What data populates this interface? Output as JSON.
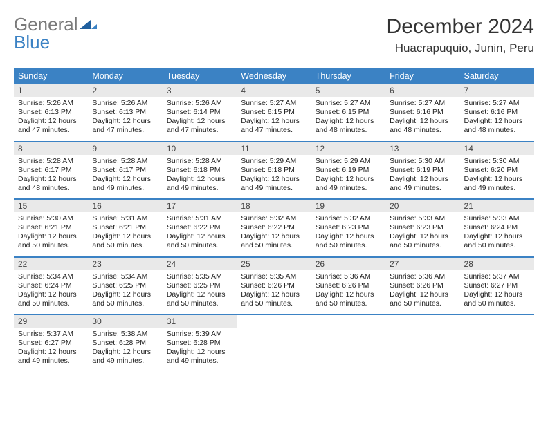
{
  "logo": {
    "word1": "General",
    "word2": "Blue",
    "color_gray": "#7a7a7a",
    "color_blue": "#3b82c4"
  },
  "title": "December 2024",
  "location": "Huacrapuquio, Junin, Peru",
  "header_bg": "#3b82c4",
  "header_fg": "#ffffff",
  "daynum_bg": "#e9e9e9",
  "rule_color": "#3b82c4",
  "weekdays": [
    "Sunday",
    "Monday",
    "Tuesday",
    "Wednesday",
    "Thursday",
    "Friday",
    "Saturday"
  ],
  "weeks": [
    [
      {
        "n": "1",
        "sr": "5:26 AM",
        "ss": "6:13 PM",
        "dl": "12 hours and 47 minutes."
      },
      {
        "n": "2",
        "sr": "5:26 AM",
        "ss": "6:13 PM",
        "dl": "12 hours and 47 minutes."
      },
      {
        "n": "3",
        "sr": "5:26 AM",
        "ss": "6:14 PM",
        "dl": "12 hours and 47 minutes."
      },
      {
        "n": "4",
        "sr": "5:27 AM",
        "ss": "6:15 PM",
        "dl": "12 hours and 47 minutes."
      },
      {
        "n": "5",
        "sr": "5:27 AM",
        "ss": "6:15 PM",
        "dl": "12 hours and 48 minutes."
      },
      {
        "n": "6",
        "sr": "5:27 AM",
        "ss": "6:16 PM",
        "dl": "12 hours and 48 minutes."
      },
      {
        "n": "7",
        "sr": "5:27 AM",
        "ss": "6:16 PM",
        "dl": "12 hours and 48 minutes."
      }
    ],
    [
      {
        "n": "8",
        "sr": "5:28 AM",
        "ss": "6:17 PM",
        "dl": "12 hours and 48 minutes."
      },
      {
        "n": "9",
        "sr": "5:28 AM",
        "ss": "6:17 PM",
        "dl": "12 hours and 49 minutes."
      },
      {
        "n": "10",
        "sr": "5:28 AM",
        "ss": "6:18 PM",
        "dl": "12 hours and 49 minutes."
      },
      {
        "n": "11",
        "sr": "5:29 AM",
        "ss": "6:18 PM",
        "dl": "12 hours and 49 minutes."
      },
      {
        "n": "12",
        "sr": "5:29 AM",
        "ss": "6:19 PM",
        "dl": "12 hours and 49 minutes."
      },
      {
        "n": "13",
        "sr": "5:30 AM",
        "ss": "6:19 PM",
        "dl": "12 hours and 49 minutes."
      },
      {
        "n": "14",
        "sr": "5:30 AM",
        "ss": "6:20 PM",
        "dl": "12 hours and 49 minutes."
      }
    ],
    [
      {
        "n": "15",
        "sr": "5:30 AM",
        "ss": "6:21 PM",
        "dl": "12 hours and 50 minutes."
      },
      {
        "n": "16",
        "sr": "5:31 AM",
        "ss": "6:21 PM",
        "dl": "12 hours and 50 minutes."
      },
      {
        "n": "17",
        "sr": "5:31 AM",
        "ss": "6:22 PM",
        "dl": "12 hours and 50 minutes."
      },
      {
        "n": "18",
        "sr": "5:32 AM",
        "ss": "6:22 PM",
        "dl": "12 hours and 50 minutes."
      },
      {
        "n": "19",
        "sr": "5:32 AM",
        "ss": "6:23 PM",
        "dl": "12 hours and 50 minutes."
      },
      {
        "n": "20",
        "sr": "5:33 AM",
        "ss": "6:23 PM",
        "dl": "12 hours and 50 minutes."
      },
      {
        "n": "21",
        "sr": "5:33 AM",
        "ss": "6:24 PM",
        "dl": "12 hours and 50 minutes."
      }
    ],
    [
      {
        "n": "22",
        "sr": "5:34 AM",
        "ss": "6:24 PM",
        "dl": "12 hours and 50 minutes."
      },
      {
        "n": "23",
        "sr": "5:34 AM",
        "ss": "6:25 PM",
        "dl": "12 hours and 50 minutes."
      },
      {
        "n": "24",
        "sr": "5:35 AM",
        "ss": "6:25 PM",
        "dl": "12 hours and 50 minutes."
      },
      {
        "n": "25",
        "sr": "5:35 AM",
        "ss": "6:26 PM",
        "dl": "12 hours and 50 minutes."
      },
      {
        "n": "26",
        "sr": "5:36 AM",
        "ss": "6:26 PM",
        "dl": "12 hours and 50 minutes."
      },
      {
        "n": "27",
        "sr": "5:36 AM",
        "ss": "6:26 PM",
        "dl": "12 hours and 50 minutes."
      },
      {
        "n": "28",
        "sr": "5:37 AM",
        "ss": "6:27 PM",
        "dl": "12 hours and 50 minutes."
      }
    ],
    [
      {
        "n": "29",
        "sr": "5:37 AM",
        "ss": "6:27 PM",
        "dl": "12 hours and 49 minutes."
      },
      {
        "n": "30",
        "sr": "5:38 AM",
        "ss": "6:28 PM",
        "dl": "12 hours and 49 minutes."
      },
      {
        "n": "31",
        "sr": "5:39 AM",
        "ss": "6:28 PM",
        "dl": "12 hours and 49 minutes."
      },
      null,
      null,
      null,
      null
    ]
  ],
  "labels": {
    "sunrise": "Sunrise:",
    "sunset": "Sunset:",
    "daylight": "Daylight:"
  }
}
